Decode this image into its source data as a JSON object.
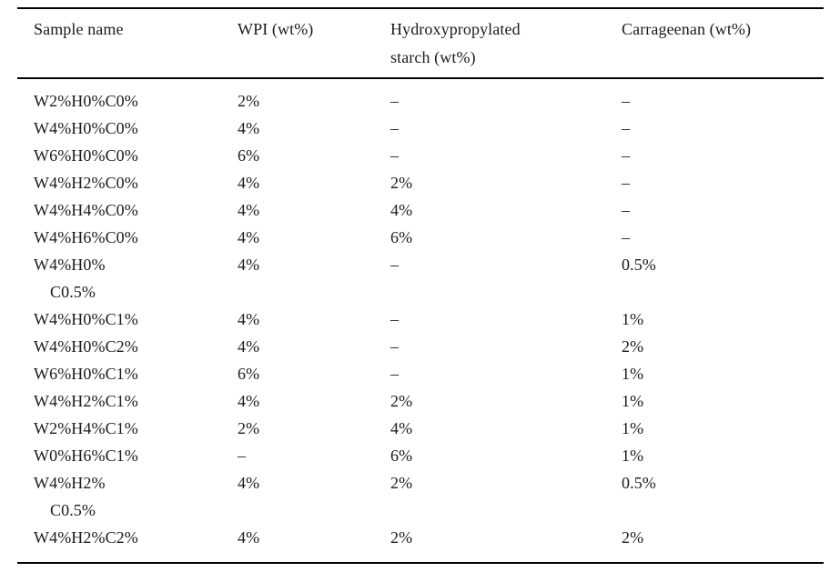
{
  "page": {
    "background_color": "#ffffff",
    "text_color": "#1b1b1b",
    "rule_color": "#000000"
  },
  "table": {
    "headers": [
      {
        "lines": [
          "Sample name"
        ]
      },
      {
        "lines": [
          "WPI (wt%)"
        ]
      },
      {
        "lines": [
          "Hydroxypropylated",
          "starch (wt%)"
        ]
      },
      {
        "lines": [
          "Carrageenan (wt%)"
        ]
      }
    ],
    "rows": [
      {
        "name_lines": [
          "W2%H0%C0%"
        ],
        "wpi": "2%",
        "starch": "–",
        "carrageenan": "–"
      },
      {
        "name_lines": [
          "W4%H0%C0%"
        ],
        "wpi": "4%",
        "starch": "–",
        "carrageenan": "–"
      },
      {
        "name_lines": [
          "W6%H0%C0%"
        ],
        "wpi": "6%",
        "starch": "–",
        "carrageenan": "–"
      },
      {
        "name_lines": [
          "W4%H2%C0%"
        ],
        "wpi": "4%",
        "starch": "2%",
        "carrageenan": "–"
      },
      {
        "name_lines": [
          "W4%H4%C0%"
        ],
        "wpi": "4%",
        "starch": "4%",
        "carrageenan": "–"
      },
      {
        "name_lines": [
          "W4%H6%C0%"
        ],
        "wpi": "4%",
        "starch": "6%",
        "carrageenan": "–"
      },
      {
        "name_lines": [
          "W4%H0%",
          "C0.5%"
        ],
        "wpi": "4%",
        "starch": "–",
        "carrageenan": "0.5%"
      },
      {
        "name_lines": [
          "W4%H0%C1%"
        ],
        "wpi": "4%",
        "starch": "–",
        "carrageenan": "1%"
      },
      {
        "name_lines": [
          "W4%H0%C2%"
        ],
        "wpi": "4%",
        "starch": "–",
        "carrageenan": "2%"
      },
      {
        "name_lines": [
          "W6%H0%C1%"
        ],
        "wpi": "6%",
        "starch": "–",
        "carrageenan": "1%"
      },
      {
        "name_lines": [
          "W4%H2%C1%"
        ],
        "wpi": "4%",
        "starch": "2%",
        "carrageenan": "1%"
      },
      {
        "name_lines": [
          "W2%H4%C1%"
        ],
        "wpi": "2%",
        "starch": "4%",
        "carrageenan": "1%"
      },
      {
        "name_lines": [
          "W0%H6%C1%"
        ],
        "wpi": "–",
        "starch": "6%",
        "carrageenan": "1%"
      },
      {
        "name_lines": [
          "W4%H2%",
          "C0.5%"
        ],
        "wpi": "4%",
        "starch": "2%",
        "carrageenan": "0.5%"
      },
      {
        "name_lines": [
          "W4%H2%C2%"
        ],
        "wpi": "4%",
        "starch": "2%",
        "carrageenan": "2%"
      }
    ]
  }
}
